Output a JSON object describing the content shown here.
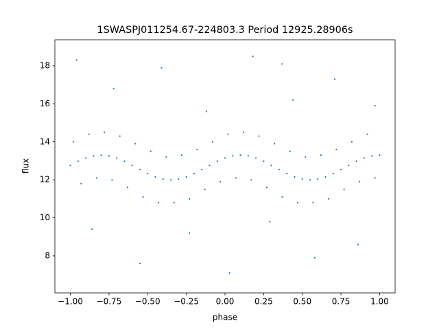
{
  "chart_data": {
    "type": "scatter",
    "title": "1SWASPJ011254.67-224803.3 Period 12925.28906s",
    "xlabel": "phase",
    "ylabel": "flux",
    "color": "#1f77b4",
    "x": [
      -1.0,
      -0.95,
      -0.9,
      -0.85,
      -0.8,
      -0.75,
      -0.7,
      -0.65,
      -0.6,
      -0.55,
      -0.5,
      -0.45,
      -0.4,
      -0.35,
      -0.3,
      -0.25,
      -0.2,
      -0.15,
      -0.1,
      -0.05,
      0.0,
      0.05,
      0.1,
      0.15,
      0.2,
      0.25,
      0.3,
      0.35,
      0.4,
      0.45,
      0.5,
      0.55,
      0.6,
      0.65,
      0.7,
      0.75,
      0.8,
      0.85,
      0.9,
      0.95,
      1.0,
      -0.98,
      -0.88,
      -0.78,
      -0.68,
      -0.58,
      -0.48,
      -0.38,
      -0.28,
      -0.18,
      -0.08,
      0.02,
      0.12,
      0.22,
      0.32,
      0.42,
      0.52,
      0.62,
      0.72,
      0.82,
      0.92,
      -0.93,
      -0.83,
      -0.73,
      -0.63,
      -0.53,
      -0.43,
      -0.33,
      -0.23,
      -0.13,
      -0.03,
      0.07,
      0.17,
      0.27,
      0.37,
      0.47,
      0.57,
      0.67,
      0.77,
      0.87,
      0.97,
      -0.96,
      -0.72,
      -0.55,
      -0.41,
      -0.23,
      -0.12,
      0.03,
      0.18,
      0.29,
      0.44,
      0.58,
      0.71,
      0.86,
      0.97,
      -0.86,
      0.37
    ],
    "y": [
      12.76,
      12.98,
      13.15,
      13.26,
      13.3,
      13.26,
      13.15,
      12.98,
      12.76,
      12.54,
      12.33,
      12.15,
      12.04,
      12.0,
      12.04,
      12.15,
      12.33,
      12.54,
      12.76,
      12.98,
      13.15,
      13.26,
      13.3,
      13.26,
      13.15,
      12.98,
      12.76,
      12.54,
      12.33,
      12.15,
      12.04,
      12.0,
      12.04,
      12.15,
      12.33,
      12.54,
      12.76,
      12.98,
      13.15,
      13.26,
      13.3,
      14.0,
      14.4,
      14.5,
      14.3,
      13.9,
      13.5,
      13.2,
      13.3,
      13.6,
      14.0,
      14.4,
      14.5,
      14.3,
      13.9,
      13.5,
      13.2,
      13.3,
      13.6,
      14.0,
      14.4,
      11.8,
      12.1,
      12.0,
      11.6,
      11.1,
      10.8,
      10.8,
      11.0,
      11.5,
      11.9,
      12.1,
      12.0,
      11.6,
      11.1,
      10.8,
      10.8,
      11.0,
      11.5,
      11.9,
      12.1,
      18.3,
      16.8,
      7.6,
      17.9,
      9.2,
      15.6,
      7.1,
      18.5,
      9.8,
      16.2,
      7.9,
      17.3,
      8.6,
      15.9,
      9.4,
      18.1
    ],
    "xlim": [
      -1.1,
      1.1
    ],
    "ylim": [
      6.05,
      19.37
    ],
    "xticks": [
      {
        "value": -1,
        "label": "−1.00"
      },
      {
        "value": -0.75,
        "label": "−0.75"
      },
      {
        "value": -0.5,
        "label": "−0.50"
      },
      {
        "value": -0.25,
        "label": "−0.25"
      },
      {
        "value": 0,
        "label": "0.00"
      },
      {
        "value": 0.25,
        "label": "0.25"
      },
      {
        "value": 0.5,
        "label": "0.50"
      },
      {
        "value": 0.75,
        "label": "0.75"
      },
      {
        "value": 1,
        "label": "1.00"
      }
    ],
    "yticks": [
      8,
      10,
      12,
      14,
      16,
      18
    ]
  }
}
